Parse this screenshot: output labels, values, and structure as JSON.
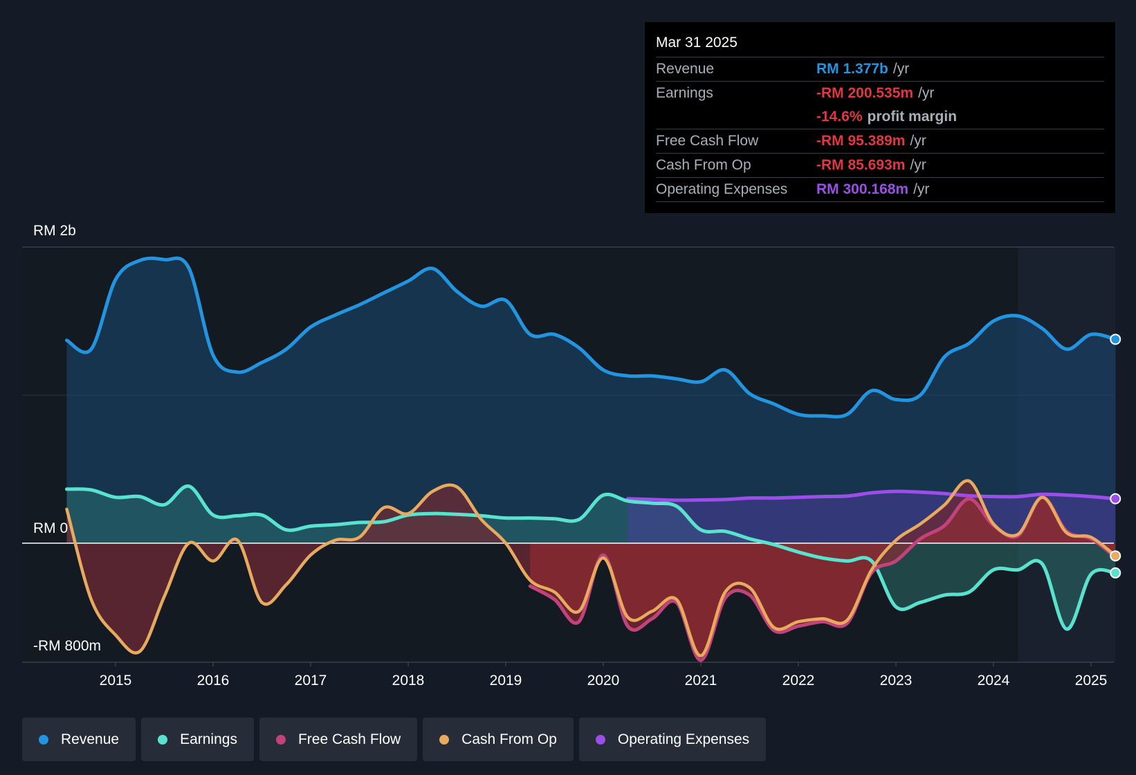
{
  "tooltip": {
    "date": "Mar 31 2025",
    "revenue": {
      "name": "Revenue",
      "value": "RM 1.377b",
      "unit": "/yr"
    },
    "earnings": {
      "name": "Earnings",
      "value": "-RM 200.535m",
      "unit": "/yr"
    },
    "margin": {
      "value": "-14.6%",
      "unit": "profit margin"
    },
    "fcf": {
      "name": "Free Cash Flow",
      "value": "-RM 95.389m",
      "unit": "/yr"
    },
    "cfo": {
      "name": "Cash From Op",
      "value": "-RM 85.693m",
      "unit": "/yr"
    },
    "opex": {
      "name": "Operating Expenses",
      "value": "RM 300.168m",
      "unit": "/yr"
    }
  },
  "colors": {
    "revenue": "#2394df",
    "earnings": "#59e3cf",
    "fcf": "#c2437b",
    "cfo": "#e8aa5e",
    "opex": "#9b4ee8",
    "negative": "#e0383e",
    "background": "#151b26"
  },
  "legend": [
    {
      "label": "Revenue",
      "color": "#2394df"
    },
    {
      "label": "Earnings",
      "color": "#59e3cf"
    },
    {
      "label": "Free Cash Flow",
      "color": "#c2437b"
    },
    {
      "label": "Cash From Op",
      "color": "#e8aa5e"
    },
    {
      "label": "Operating Expenses",
      "color": "#9b4ee8"
    }
  ],
  "chart_data": {
    "type": "line",
    "title": "",
    "units": "RM millions",
    "y_top_label": "RM 2b",
    "y_zero_label": "RM 0",
    "y_bottom_label": "-RM 800m",
    "ylim": [
      -800,
      2000
    ],
    "xlim": [
      2014.3,
      2025.25
    ],
    "x_ticks": [
      2015,
      2016,
      2017,
      2018,
      2019,
      2020,
      2021,
      2022,
      2023,
      2024,
      2025
    ],
    "x_tick_labels": [
      "2015",
      "2016",
      "2017",
      "2018",
      "2019",
      "2020",
      "2021",
      "2022",
      "2023",
      "2024",
      "2025"
    ],
    "forecast_start": 2024.25,
    "series": [
      {
        "name": "Revenue",
        "key": "revenue",
        "x": [
          2014.5,
          2014.75,
          2015.0,
          2015.25,
          2015.5,
          2015.75,
          2016.0,
          2016.25,
          2016.5,
          2016.75,
          2017.0,
          2017.25,
          2017.5,
          2017.75,
          2018.0,
          2018.25,
          2018.5,
          2018.75,
          2019.0,
          2019.25,
          2019.5,
          2019.75,
          2020.0,
          2020.25,
          2020.5,
          2020.75,
          2021.0,
          2021.25,
          2021.5,
          2021.75,
          2022.0,
          2022.25,
          2022.5,
          2022.75,
          2023.0,
          2023.25,
          2023.5,
          2023.75,
          2024.0,
          2024.25,
          2024.5,
          2024.75,
          2025.0,
          2025.25
        ],
        "values": [
          1370,
          1310,
          1780,
          1910,
          1915,
          1860,
          1270,
          1155,
          1220,
          1310,
          1460,
          1540,
          1610,
          1690,
          1770,
          1855,
          1700,
          1600,
          1640,
          1410,
          1410,
          1320,
          1170,
          1130,
          1130,
          1110,
          1090,
          1170,
          1010,
          940,
          870,
          860,
          870,
          1030,
          970,
          1000,
          1260,
          1350,
          1500,
          1535,
          1450,
          1310,
          1410,
          1377
        ]
      },
      {
        "name": "Earnings",
        "key": "earnings",
        "x": [
          2014.5,
          2014.75,
          2015.0,
          2015.25,
          2015.5,
          2015.75,
          2016.0,
          2016.25,
          2016.5,
          2016.75,
          2017.0,
          2017.25,
          2017.5,
          2017.75,
          2018.0,
          2018.25,
          2018.5,
          2018.75,
          2019.0,
          2019.25,
          2019.5,
          2019.75,
          2020.0,
          2020.25,
          2020.5,
          2020.75,
          2021.0,
          2021.25,
          2021.5,
          2021.75,
          2022.0,
          2022.25,
          2022.5,
          2022.75,
          2023.0,
          2023.25,
          2023.5,
          2023.75,
          2024.0,
          2024.25,
          2024.5,
          2024.75,
          2025.0,
          2025.25
        ],
        "values": [
          365,
          360,
          310,
          315,
          260,
          385,
          190,
          185,
          190,
          90,
          115,
          125,
          140,
          145,
          190,
          200,
          195,
          185,
          170,
          170,
          165,
          160,
          325,
          285,
          270,
          250,
          90,
          80,
          30,
          -10,
          -60,
          -100,
          -120,
          -120,
          -430,
          -400,
          -350,
          -330,
          -180,
          -180,
          -140,
          -580,
          -210,
          -200.535
        ]
      },
      {
        "name": "Free Cash Flow",
        "key": "fcf",
        "x": [
          2019.25,
          2019.5,
          2019.75,
          2020.0,
          2020.25,
          2020.5,
          2020.75,
          2021.0,
          2021.25,
          2021.5,
          2021.75,
          2022.0,
          2022.25,
          2022.5,
          2022.75,
          2023.0,
          2023.25,
          2023.5,
          2023.75,
          2024.0,
          2024.25,
          2024.5,
          2024.75,
          2025.0,
          2025.25
        ],
        "values": [
          -290,
          -380,
          -530,
          -80,
          -560,
          -510,
          -400,
          -790,
          -370,
          -350,
          -590,
          -560,
          -530,
          -540,
          -200,
          -120,
          30,
          120,
          300,
          120,
          50,
          310,
          80,
          30,
          -95.389
        ]
      },
      {
        "name": "Cash From Op",
        "key": "cfo",
        "x": [
          2014.5,
          2014.75,
          2015.0,
          2015.25,
          2015.5,
          2015.75,
          2016.0,
          2016.25,
          2016.5,
          2016.75,
          2017.0,
          2017.25,
          2017.5,
          2017.75,
          2018.0,
          2018.25,
          2018.5,
          2018.75,
          2019.0,
          2019.25,
          2019.5,
          2019.75,
          2020.0,
          2020.25,
          2020.5,
          2020.75,
          2021.0,
          2021.25,
          2021.5,
          2021.75,
          2022.0,
          2022.25,
          2022.5,
          2022.75,
          2023.0,
          2023.25,
          2023.5,
          2023.75,
          2024.0,
          2024.25,
          2024.5,
          2024.75,
          2025.0,
          2025.25
        ],
        "values": [
          230,
          -380,
          -620,
          -730,
          -360,
          0,
          -120,
          20,
          -400,
          -280,
          -80,
          20,
          40,
          240,
          200,
          350,
          380,
          160,
          0,
          -250,
          -330,
          -460,
          -100,
          -500,
          -460,
          -380,
          -760,
          -330,
          -300,
          -570,
          -530,
          -510,
          -520,
          -180,
          20,
          130,
          260,
          420,
          130,
          60,
          310,
          70,
          40,
          -85.693
        ]
      },
      {
        "name": "Operating Expenses",
        "key": "opex",
        "x": [
          2020.25,
          2020.5,
          2020.75,
          2021.0,
          2021.25,
          2021.5,
          2021.75,
          2022.0,
          2022.25,
          2022.5,
          2022.75,
          2023.0,
          2023.25,
          2023.5,
          2023.75,
          2024.0,
          2024.25,
          2024.5,
          2024.75,
          2025.0,
          2025.25
        ],
        "values": [
          300,
          295,
          290,
          292,
          295,
          305,
          305,
          310,
          315,
          318,
          340,
          350,
          345,
          335,
          320,
          315,
          315,
          330,
          325,
          315,
          300.168
        ]
      }
    ]
  }
}
